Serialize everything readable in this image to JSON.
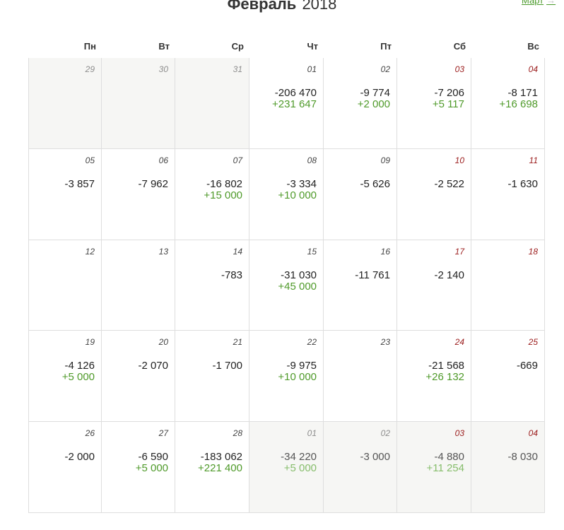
{
  "header": {
    "month": "Февраль",
    "year": "2018",
    "next_link": "Март",
    "next_arrow": "→"
  },
  "weekdays": [
    "Пн",
    "Вт",
    "Ср",
    "Чт",
    "Пт",
    "Сб",
    "Вс"
  ],
  "colors": {
    "income": "#4f9a2a",
    "weekend": "#9b1c1c",
    "other_month_bg": "#f6f6f4"
  },
  "weeks": [
    [
      {
        "day": "29",
        "other": true,
        "weekend": false,
        "neg": "",
        "pos": ""
      },
      {
        "day": "30",
        "other": true,
        "weekend": false,
        "neg": "",
        "pos": ""
      },
      {
        "day": "31",
        "other": true,
        "weekend": false,
        "neg": "",
        "pos": ""
      },
      {
        "day": "01",
        "other": false,
        "weekend": false,
        "neg": "-206 470",
        "pos": "+231 647"
      },
      {
        "day": "02",
        "other": false,
        "weekend": false,
        "neg": "-9 774",
        "pos": "+2 000"
      },
      {
        "day": "03",
        "other": false,
        "weekend": true,
        "neg": "-7 206",
        "pos": "+5 117"
      },
      {
        "day": "04",
        "other": false,
        "weekend": true,
        "neg": "-8 171",
        "pos": "+16 698"
      }
    ],
    [
      {
        "day": "05",
        "other": false,
        "weekend": false,
        "neg": "-3 857",
        "pos": ""
      },
      {
        "day": "06",
        "other": false,
        "weekend": false,
        "neg": "-7 962",
        "pos": ""
      },
      {
        "day": "07",
        "other": false,
        "weekend": false,
        "neg": "-16 802",
        "pos": "+15 000"
      },
      {
        "day": "08",
        "other": false,
        "weekend": false,
        "neg": "-3 334",
        "pos": "+10 000"
      },
      {
        "day": "09",
        "other": false,
        "weekend": false,
        "neg": "-5 626",
        "pos": ""
      },
      {
        "day": "10",
        "other": false,
        "weekend": true,
        "neg": "-2 522",
        "pos": ""
      },
      {
        "day": "11",
        "other": false,
        "weekend": true,
        "neg": "-1 630",
        "pos": ""
      }
    ],
    [
      {
        "day": "12",
        "other": false,
        "weekend": false,
        "neg": "",
        "pos": ""
      },
      {
        "day": "13",
        "other": false,
        "weekend": false,
        "neg": "",
        "pos": ""
      },
      {
        "day": "14",
        "other": false,
        "weekend": false,
        "neg": "-783",
        "pos": ""
      },
      {
        "day": "15",
        "other": false,
        "weekend": false,
        "neg": "-31 030",
        "pos": "+45 000"
      },
      {
        "day": "16",
        "other": false,
        "weekend": false,
        "neg": "-11 761",
        "pos": ""
      },
      {
        "day": "17",
        "other": false,
        "weekend": true,
        "neg": "-2 140",
        "pos": ""
      },
      {
        "day": "18",
        "other": false,
        "weekend": true,
        "neg": "",
        "pos": ""
      }
    ],
    [
      {
        "day": "19",
        "other": false,
        "weekend": false,
        "neg": "-4 126",
        "pos": "+5 000"
      },
      {
        "day": "20",
        "other": false,
        "weekend": false,
        "neg": "-2 070",
        "pos": ""
      },
      {
        "day": "21",
        "other": false,
        "weekend": false,
        "neg": "-1 700",
        "pos": ""
      },
      {
        "day": "22",
        "other": false,
        "weekend": false,
        "neg": "-9 975",
        "pos": "+10 000"
      },
      {
        "day": "23",
        "other": false,
        "weekend": false,
        "neg": "",
        "pos": ""
      },
      {
        "day": "24",
        "other": false,
        "weekend": true,
        "neg": "-21 568",
        "pos": "+26 132"
      },
      {
        "day": "25",
        "other": false,
        "weekend": true,
        "neg": "-669",
        "pos": ""
      }
    ],
    [
      {
        "day": "26",
        "other": false,
        "weekend": false,
        "neg": "-2 000",
        "pos": ""
      },
      {
        "day": "27",
        "other": false,
        "weekend": false,
        "neg": "-6 590",
        "pos": "+5 000"
      },
      {
        "day": "28",
        "other": false,
        "weekend": false,
        "neg": "-183 062",
        "pos": "+221 400"
      },
      {
        "day": "01",
        "other": true,
        "weekend": false,
        "neg": "-34 220",
        "pos": "+5 000"
      },
      {
        "day": "02",
        "other": true,
        "weekend": false,
        "neg": "-3 000",
        "pos": ""
      },
      {
        "day": "03",
        "other": true,
        "weekend": true,
        "neg": "-4 880",
        "pos": "+11 254"
      },
      {
        "day": "04",
        "other": true,
        "weekend": true,
        "neg": "-8 030",
        "pos": ""
      }
    ]
  ]
}
